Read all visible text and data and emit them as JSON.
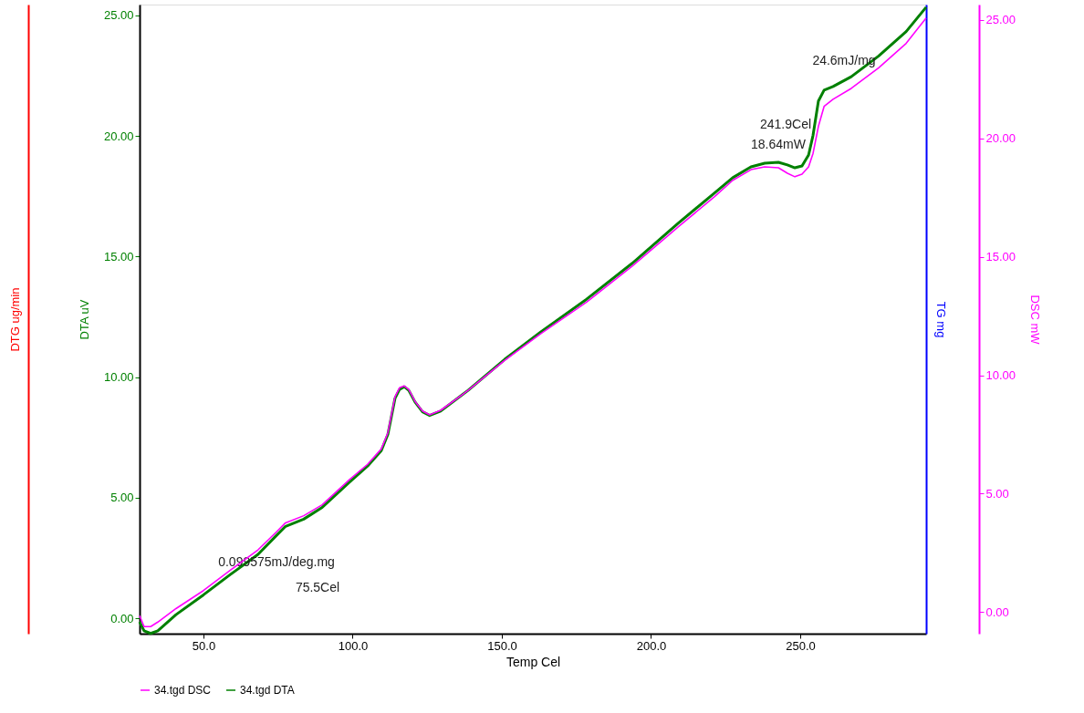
{
  "chart_data": {
    "type": "line",
    "xlabel": "Temp Cel",
    "ylabel": "DTA uV",
    "y2label": "DSC mW",
    "y3label": "DTG ug/min",
    "x": [
      28.6,
      30.1,
      32.3,
      34.7,
      40.8,
      50.0,
      59.2,
      68.3,
      74.5,
      77.5,
      83.6,
      89.8,
      98.9,
      105.0,
      109.6,
      111.8,
      113.0,
      114.2,
      115.7,
      117.3,
      118.8,
      120.9,
      123.4,
      125.8,
      129.5,
      138.7,
      150.9,
      163.1,
      178.4,
      193.7,
      209.0,
      221.3,
      227.4,
      233.5,
      238.1,
      242.7,
      245.7,
      248.2,
      250.6,
      252.8,
      254.3,
      256.1,
      258.0,
      261.0,
      267.1,
      276.3,
      285.5,
      292.2
    ],
    "series": [
      {
        "name": "34.tgd  DSC",
        "color": "#ff00ff",
        "axis": "y2",
        "values": [
          -0.15,
          -0.61,
          -0.61,
          -0.42,
          0.15,
          0.91,
          1.79,
          2.63,
          3.39,
          3.77,
          4.07,
          4.53,
          5.59,
          6.24,
          6.89,
          7.57,
          8.33,
          9.09,
          9.47,
          9.55,
          9.4,
          8.9,
          8.49,
          8.33,
          8.52,
          9.36,
          10.62,
          11.76,
          13.09,
          14.61,
          16.25,
          17.54,
          18.23,
          18.68,
          18.8,
          18.76,
          18.53,
          18.38,
          18.49,
          18.8,
          19.37,
          20.51,
          21.35,
          21.65,
          22.11,
          22.98,
          24.01,
          25.08
        ]
      },
      {
        "name": "34.tgd  DTA",
        "color": "#008000",
        "values": [
          -0.15,
          -0.52,
          -0.63,
          -0.52,
          0.15,
          0.97,
          1.83,
          2.65,
          3.44,
          3.81,
          4.11,
          4.6,
          5.64,
          6.31,
          6.95,
          7.62,
          8.37,
          9.12,
          9.49,
          9.6,
          9.45,
          8.97,
          8.56,
          8.41,
          8.59,
          9.45,
          10.73,
          11.88,
          13.23,
          14.72,
          16.37,
          17.64,
          18.27,
          18.72,
          18.87,
          18.91,
          18.8,
          18.68,
          18.76,
          19.21,
          20.03,
          21.45,
          21.9,
          22.05,
          22.46,
          23.32,
          24.33,
          25.34
        ]
      }
    ],
    "xlim": [
      28.6,
      292.2
    ],
    "xticks": [
      {
        "value": 50,
        "label": "50.0"
      },
      {
        "value": 100,
        "label": "100.0"
      },
      {
        "value": 150,
        "label": "150.0"
      },
      {
        "value": 200,
        "label": "200.0"
      },
      {
        "value": 250,
        "label": "250.0"
      }
    ],
    "ylim": [
      -0.64,
      25.45
    ],
    "yticks": [
      {
        "value": 0,
        "label": "0.00"
      },
      {
        "value": 5,
        "label": "5.00"
      },
      {
        "value": 10,
        "label": "10.00"
      },
      {
        "value": 15,
        "label": "15.00"
      },
      {
        "value": 20,
        "label": "20.00"
      },
      {
        "value": 25,
        "label": "25.00"
      }
    ],
    "y2lim": [
      -0.91,
      25.65
    ],
    "y2ticks": [
      {
        "value": 0,
        "label": "0.00"
      },
      {
        "value": 5,
        "label": "5.00"
      },
      {
        "value": 10,
        "label": "10.00"
      },
      {
        "value": 15,
        "label": "15.00"
      },
      {
        "value": 20,
        "label": "20.00"
      },
      {
        "value": 25,
        "label": "25.00"
      }
    ],
    "annotations": [
      "0.099575mJ/deg.mg",
      "75.5Cel",
      "241.9Cel",
      "18.64mW",
      "24.6mJ/mg",
      "TG mg"
    ],
    "legend": "bottom",
    "grid": false,
    "marker": "none",
    "line_style": "solid"
  }
}
